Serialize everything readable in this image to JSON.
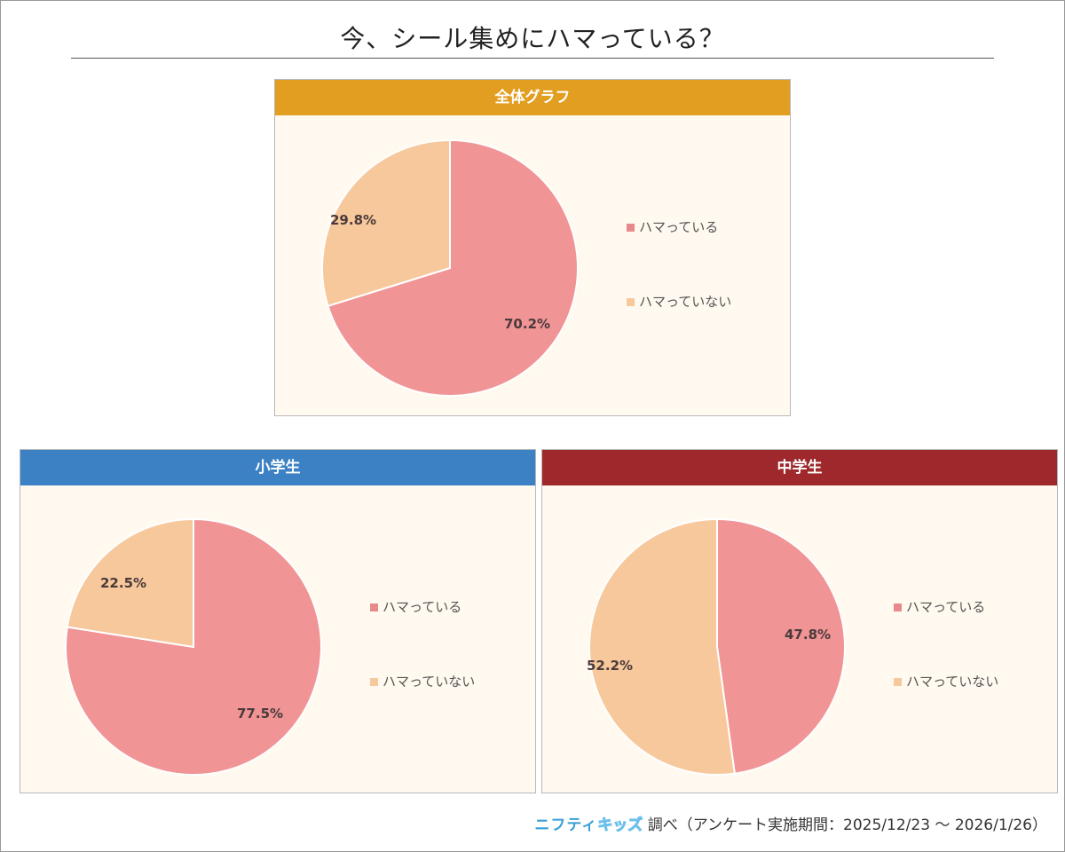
{
  "page": {
    "title": "今、シール集めにハマっている？",
    "footer": {
      "logo_text_1": "ニフティ",
      "logo_text_2": "キッズ",
      "text": "調べ（アンケート実施期間：2025/12/23 ～ 2026/1/26）"
    }
  },
  "colors": {
    "slice_yes": "#f19496",
    "slice_no": "#f7c89b",
    "header_all": "#e19e20",
    "header_elementary": "#3b81c4",
    "header_junior": "#9e282b",
    "panel_bg": "#fff9ef"
  },
  "legend": {
    "yes": "ハマっている",
    "no": "ハマっていない"
  },
  "panels": {
    "all": {
      "header": "全体グラフ",
      "yes_label": "70.2%",
      "no_label": "29.8%"
    },
    "elementary": {
      "header": "小学生",
      "yes_label": "77.5%",
      "no_label": "22.5%"
    },
    "junior": {
      "header": "中学生",
      "yes_label": "47.8%",
      "no_label": "52.2%"
    }
  },
  "chart_data": [
    {
      "type": "pie",
      "title": "全体グラフ",
      "categories": [
        "ハマっている",
        "ハマっていない"
      ],
      "values": [
        70.2,
        29.8
      ],
      "legend_position": "right"
    },
    {
      "type": "pie",
      "title": "小学生",
      "categories": [
        "ハマっている",
        "ハマっていない"
      ],
      "values": [
        77.5,
        22.5
      ],
      "legend_position": "right"
    },
    {
      "type": "pie",
      "title": "中学生",
      "categories": [
        "ハマっている",
        "ハマっていない"
      ],
      "values": [
        47.8,
        52.2
      ],
      "legend_position": "right"
    }
  ]
}
